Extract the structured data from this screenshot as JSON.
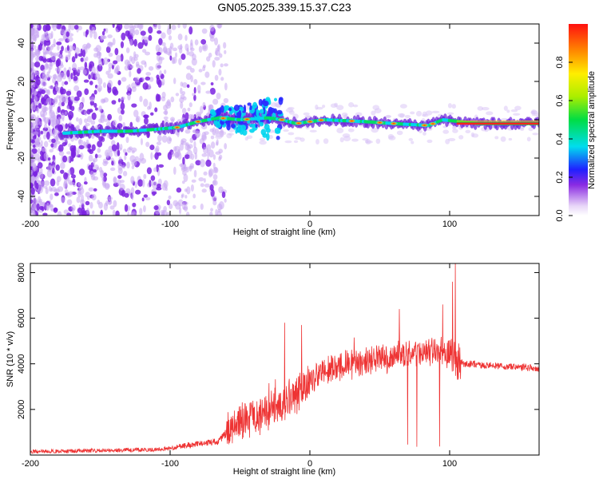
{
  "title": "GN05.2025.339.15.37.C23",
  "chart_data": [
    {
      "type": "heatmap",
      "name": "spectrogram",
      "xlabel": "Height of straight line (km)",
      "ylabel": "Frequency (Hz)",
      "xlim": [
        -200,
        164
      ],
      "ylim": [
        -50,
        50
      ],
      "xticks": [
        -200,
        -100,
        0,
        100
      ],
      "yticks": [
        -40,
        -20,
        0,
        20,
        40
      ],
      "ridge_frequency_hz": [
        {
          "x": -175,
          "y": -7
        },
        {
          "x": -150,
          "y": -6
        },
        {
          "x": -130,
          "y": -6
        },
        {
          "x": -110,
          "y": -5
        },
        {
          "x": -95,
          "y": -4
        },
        {
          "x": -80,
          "y": -1
        },
        {
          "x": -65,
          "y": 1
        },
        {
          "x": -50,
          "y": 0
        },
        {
          "x": -30,
          "y": 1
        },
        {
          "x": -20,
          "y": 0
        },
        {
          "x": -10,
          "y": -2
        },
        {
          "x": 10,
          "y": 0
        },
        {
          "x": 40,
          "y": -1
        },
        {
          "x": 60,
          "y": -2
        },
        {
          "x": 85,
          "y": -3
        },
        {
          "x": 95,
          "y": 0
        },
        {
          "x": 120,
          "y": -2
        },
        {
          "x": 164,
          "y": -2
        }
      ],
      "colorbar": {
        "label": "Normalized spectral amplitude",
        "ticks": [
          0.0,
          0.2,
          0.4,
          0.6,
          0.8
        ],
        "range": [
          0,
          1
        ]
      }
    },
    {
      "type": "line",
      "name": "snr",
      "xlabel": "Height of straight line (km)",
      "ylabel": "SNR (10 * v/v)",
      "xlim": [
        -200,
        164
      ],
      "ylim": [
        0,
        8400
      ],
      "xticks": [
        -200,
        -100,
        0,
        100
      ],
      "yticks": [
        2000,
        4000,
        6000,
        8000
      ],
      "color": "#ee3333",
      "series_envelope": [
        {
          "x": -200,
          "y": 150
        },
        {
          "x": -150,
          "y": 200
        },
        {
          "x": -110,
          "y": 230
        },
        {
          "x": -90,
          "y": 400
        },
        {
          "x": -65,
          "y": 600
        },
        {
          "x": -55,
          "y": 1300
        },
        {
          "x": -35,
          "y": 1800
        },
        {
          "x": -20,
          "y": 2200
        },
        {
          "x": -10,
          "y": 2600
        },
        {
          "x": 0,
          "y": 3200
        },
        {
          "x": 20,
          "y": 3900
        },
        {
          "x": 40,
          "y": 4100
        },
        {
          "x": 60,
          "y": 4300
        },
        {
          "x": 80,
          "y": 4500
        },
        {
          "x": 95,
          "y": 4600
        },
        {
          "x": 110,
          "y": 4000
        },
        {
          "x": 164,
          "y": 3800
        }
      ],
      "spikes": [
        {
          "x": -18,
          "y": 5800
        },
        {
          "x": -6,
          "y": 5700
        },
        {
          "x": 64,
          "y": 6400
        },
        {
          "x": 70,
          "y": 5700
        },
        {
          "x": 95,
          "y": 6600
        },
        {
          "x": 102,
          "y": 7600
        },
        {
          "x": 104,
          "y": 8400
        }
      ]
    }
  ]
}
